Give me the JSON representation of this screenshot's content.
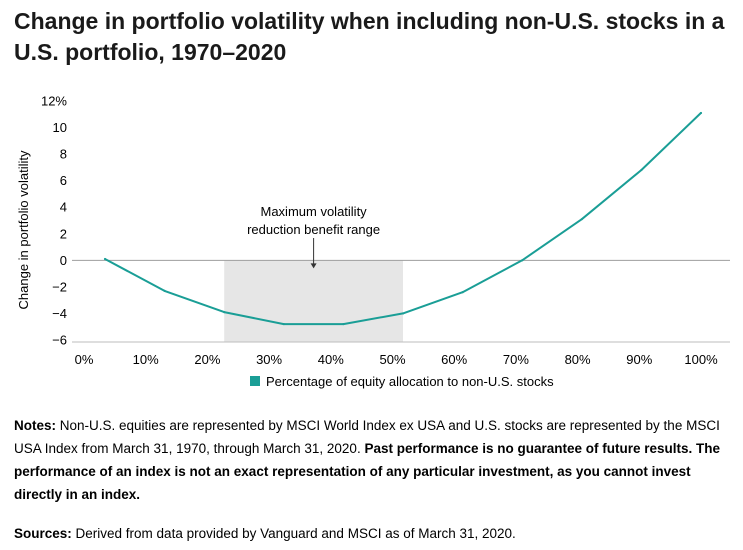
{
  "title": "Change in portfolio volatility when including non-U.S. stocks in a U.S. portfolio, 1970–2020",
  "chart_data": {
    "type": "line",
    "ylabel": "Change in portfolio volatility",
    "xlabel": "",
    "xlim": [
      0,
      100
    ],
    "ylim": [
      -6,
      12
    ],
    "x_ticks": [
      "0%",
      "10%",
      "20%",
      "30%",
      "40%",
      "50%",
      "60%",
      "70%",
      "80%",
      "90%",
      "100%"
    ],
    "y_ticks": [
      "12%",
      "10",
      "8",
      "6",
      "4",
      "2",
      "0",
      "−2",
      "−4",
      "−6"
    ],
    "series": [
      {
        "name": "Percentage of equity allocation to non-U.S. stocks",
        "color": "#1a9e96",
        "x": [
          0,
          10,
          20,
          30,
          40,
          50,
          60,
          70,
          80,
          90,
          100
        ],
        "y": [
          0.1,
          -2.3,
          -3.9,
          -4.8,
          -4.8,
          -4.0,
          -2.4,
          0.0,
          3.1,
          6.8,
          11.1
        ]
      }
    ],
    "shaded_range": {
      "x": [
        20,
        50
      ],
      "color": "#e6e6e6"
    },
    "annotation": {
      "lines": [
        "Maximum volatility",
        "reduction benefit range"
      ],
      "x": 35,
      "y": 0
    },
    "legend": {
      "position": "bottom"
    },
    "grid": false
  },
  "notes": {
    "label": "Notes:",
    "text": " Non-U.S. equities are represented by MSCI World Index ex USA and U.S. stocks are represented by the MSCI USA Index from March 31, 1970, through March 31, 2020. ",
    "bold_text": "Past performance is no guarantee of future results. The performance of an index is not an exact representation of any particular investment, as you cannot invest directly in an index."
  },
  "sources": {
    "label": "Sources:",
    "text": " Derived from data provided by Vanguard and MSCI as of March 31, 2020."
  }
}
